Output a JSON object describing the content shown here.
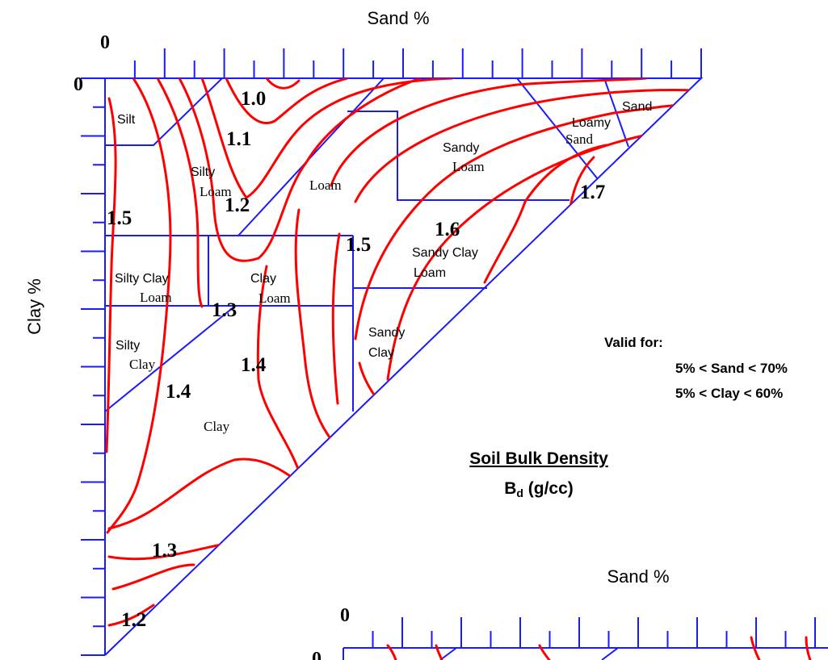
{
  "top_axis": {
    "label": "Sand %",
    "zero": "0"
  },
  "left_axis": {
    "label": "Clay %",
    "zero": "0"
  },
  "regions": [
    {
      "lines": [
        "Silt"
      ]
    },
    {
      "lines": [
        "Silty",
        "Loam"
      ]
    },
    {
      "lines": [
        "Loam"
      ]
    },
    {
      "lines": [
        "Sandy",
        "Loam"
      ]
    },
    {
      "lines": [
        "Loamy",
        "Sand"
      ]
    },
    {
      "lines": [
        "Sand"
      ]
    },
    {
      "lines": [
        "Silty Clay",
        "Loam"
      ]
    },
    {
      "lines": [
        "Clay",
        "Loam"
      ]
    },
    {
      "lines": [
        "Sandy Clay",
        "Loam"
      ]
    },
    {
      "lines": [
        "Silty",
        "Clay"
      ]
    },
    {
      "lines": [
        "Sandy",
        "Clay"
      ]
    },
    {
      "lines": [
        "Clay"
      ]
    }
  ],
  "contour_labels": [
    "1.0",
    "1.1",
    "1.2",
    "1.5",
    "1.5",
    "1.6",
    "1.7",
    "1.3",
    "1.4",
    "1.4",
    "1.3",
    "1.2"
  ],
  "note": {
    "heading": "Valid for:",
    "lines": [
      "5% < Sand < 70%",
      "5% < Clay < 60%"
    ]
  },
  "title": {
    "text": "Soil Bulk Density",
    "symbol": "B",
    "subscript": "d",
    "unit": " (g/cc)"
  },
  "inset": {
    "top_axis": {
      "label": "Sand %",
      "zero": "0"
    },
    "left_zero": "0"
  }
}
